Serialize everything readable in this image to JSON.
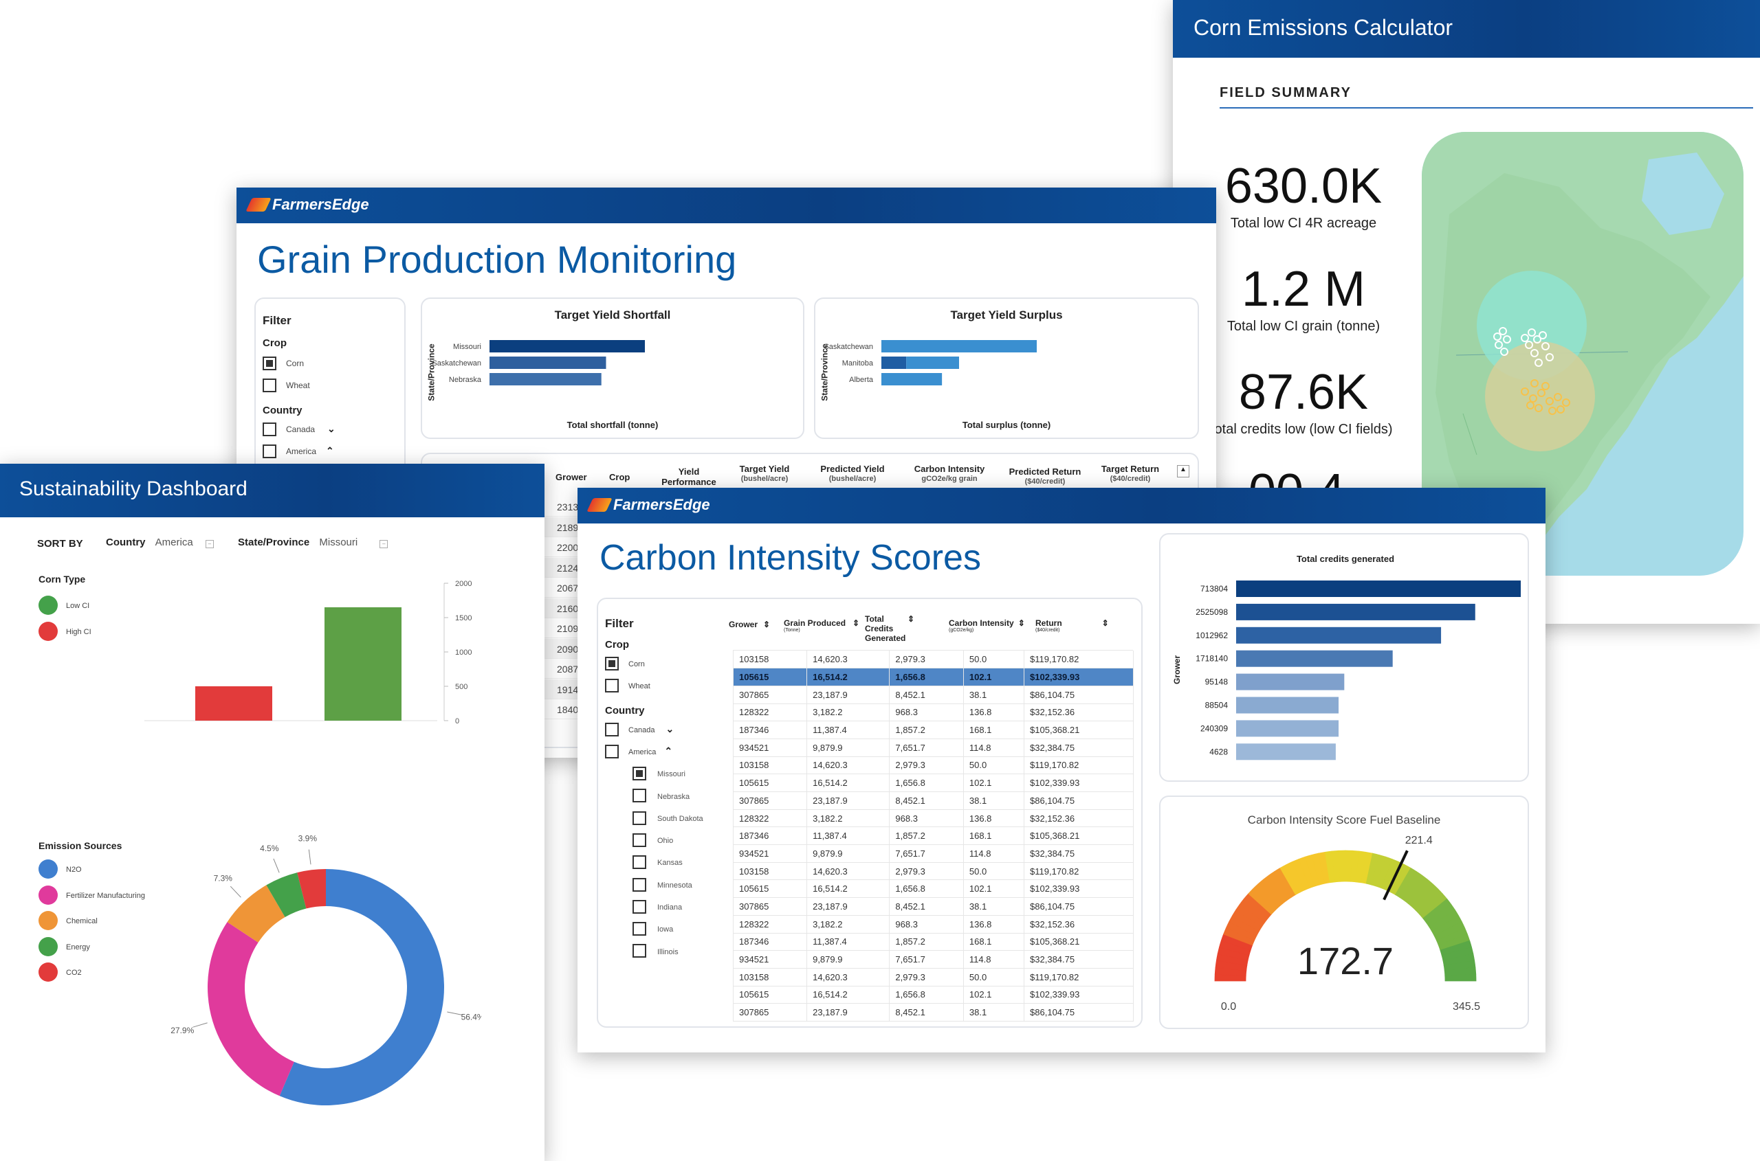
{
  "corn": {
    "title": "Corn Emissions Calculator",
    "section": "FIELD SUMMARY",
    "metrics": [
      {
        "value": "630.0K",
        "label": "Total low CI 4R acreage"
      },
      {
        "value": "1.2 M",
        "label": "Total low CI grain (tonne)"
      },
      {
        "value": "87.6K",
        "label": "otal credits low (low CI fields)"
      }
    ]
  },
  "grain": {
    "brand": "FarmersEdge",
    "title": "Grain Production Monitoring",
    "filter": {
      "title": "Filter",
      "crop_label": "Crop",
      "corn": "Corn",
      "wheat": "Wheat",
      "country_label": "Country",
      "canada": "Canada",
      "america": "America"
    },
    "shortfall": {
      "title": "Target Yield Shortfall",
      "ylabel": "State/Province",
      "xlabel": "Total shortfall (tonne)"
    },
    "surplus": {
      "title": "Target Yield Surplus",
      "ylabel": "State/Province",
      "xlabel": "Total surplus (tonne)"
    },
    "table": {
      "headers": [
        "Grower",
        "Crop",
        "Yield Performance",
        "Target Yield",
        "Predicted Yield",
        "Carbon Intensity",
        "Predicted Return",
        "Target Return"
      ],
      "subheaders": [
        "",
        "",
        "",
        "(bushel/acre)",
        "(bushel/acre)",
        "gCO2e/kg grain",
        "($40/credit)",
        "($40/credit)"
      ],
      "growers": [
        "2313",
        "2189",
        "2200",
        "2124",
        "2067",
        "2160",
        "2109",
        "2090",
        "2087",
        "1914",
        "1840"
      ]
    }
  },
  "sust": {
    "title": "Sustainability Dashboard",
    "sort_by": "SORT BY",
    "country_label": "Country",
    "country_value": "America",
    "state_label": "State/Province",
    "state_value": "Missouri",
    "corn_type_label": "Corn Type",
    "low_ci": "Low CI",
    "high_ci": "High CI",
    "emission_label": "Emission Sources",
    "emissions": [
      {
        "name": "N2O",
        "color": "#3f7fcf"
      },
      {
        "name": "Fertilizer Manufacturing",
        "color": "#e03a9c"
      },
      {
        "name": "Chemical",
        "color": "#ef9537"
      },
      {
        "name": "Energy",
        "color": "#44a14a"
      },
      {
        "name": "CO2",
        "color": "#e23b3b"
      }
    ]
  },
  "carbon": {
    "brand": "FarmersEdge",
    "title": "Carbon Intensity Scores",
    "filter": {
      "title": "Filter",
      "crop_label": "Crop",
      "corn": "Corn",
      "wheat": "Wheat",
      "country_label": "Country",
      "canada": "Canada",
      "america": "America",
      "states": [
        "Missouri",
        "Nebraska",
        "South Dakota",
        "Ohio",
        "Kansas",
        "Minnesota",
        "Indiana",
        "Iowa",
        "Illinois"
      ]
    },
    "table": {
      "headers": [
        "Grower",
        "Grain Produced",
        "Total Credits Generated",
        "Carbon Intensity",
        "Return"
      ],
      "subheaders": [
        "",
        "(Tonne)",
        "",
        "(gCO2e/kg)",
        "($40/credit)"
      ],
      "rows": [
        [
          "103158",
          "14,620.3",
          "2,979.3",
          "50.0",
          "$119,170.82"
        ],
        [
          "105615",
          "16,514.2",
          "1,656.8",
          "102.1",
          "$102,339.93"
        ],
        [
          "307865",
          "23,187.9",
          "8,452.1",
          "38.1",
          "$86,104.75"
        ],
        [
          "128322",
          "3,182.2",
          "968.3",
          "136.8",
          "$32,152.36"
        ],
        [
          "187346",
          "11,387.4",
          "1,857.2",
          "168.1",
          "$105,368.21"
        ],
        [
          "934521",
          "9,879.9",
          "7,651.7",
          "114.8",
          "$32,384.75"
        ],
        [
          "103158",
          "14,620.3",
          "2,979.3",
          "50.0",
          "$119,170.82"
        ],
        [
          "105615",
          "16,514.2",
          "1,656.8",
          "102.1",
          "$102,339.93"
        ],
        [
          "307865",
          "23,187.9",
          "8,452.1",
          "38.1",
          "$86,104.75"
        ],
        [
          "128322",
          "3,182.2",
          "968.3",
          "136.8",
          "$32,152.36"
        ],
        [
          "187346",
          "11,387.4",
          "1,857.2",
          "168.1",
          "$105,368.21"
        ],
        [
          "934521",
          "9,879.9",
          "7,651.7",
          "114.8",
          "$32,384.75"
        ],
        [
          "103158",
          "14,620.3",
          "2,979.3",
          "50.0",
          "$119,170.82"
        ],
        [
          "105615",
          "16,514.2",
          "1,656.8",
          "102.1",
          "$102,339.93"
        ],
        [
          "307865",
          "23,187.9",
          "8,452.1",
          "38.1",
          "$86,104.75"
        ],
        [
          "128322",
          "3,182.2",
          "968.3",
          "136.8",
          "$32,152.36"
        ],
        [
          "187346",
          "11,387.4",
          "1,857.2",
          "168.1",
          "$105,368.21"
        ],
        [
          "934521",
          "9,879.9",
          "7,651.7",
          "114.8",
          "$32,384.75"
        ],
        [
          "103158",
          "14,620.3",
          "2,979.3",
          "50.0",
          "$119,170.82"
        ],
        [
          "105615",
          "16,514.2",
          "1,656.8",
          "102.1",
          "$102,339.93"
        ],
        [
          "307865",
          "23,187.9",
          "8,452.1",
          "38.1",
          "$86,104.75"
        ]
      ]
    },
    "gauge": {
      "title": "Carbon Intensity Score Fuel Baseline",
      "value": 172.7,
      "value_text": "172.7",
      "min": 0,
      "min_text": "0.0",
      "max": 345.5,
      "max_text": "345.5",
      "baseline": 221.4,
      "baseline_text": "221.4"
    }
  },
  "chart_data": [
    {
      "type": "bar",
      "title": "Target Yield Shortfall",
      "xlabel": "Total shortfall (tonne)",
      "ylabel": "State/Province",
      "categories": [
        "Missouri",
        "Saskatchewan",
        "Nebraska"
      ],
      "values": [
        100,
        75,
        72
      ],
      "xlim": [
        0,
        100
      ],
      "colors": [
        "#0b3f7f",
        "#2e5f9e",
        "#3d6fab"
      ]
    },
    {
      "type": "bar",
      "title": "Target Yield Surplus",
      "xlabel": "Total surplus (tonne)",
      "ylabel": "State/Province",
      "categories": [
        "Saskatchewan",
        "Manitoba",
        "Alberta"
      ],
      "series": [
        {
          "values": [
            0,
            16,
            0
          ]
        },
        {
          "values": [
            100,
            34,
            39
          ]
        }
      ],
      "stacked": true,
      "xlim": [
        0,
        100
      ],
      "colors": [
        "#1f5da3",
        "#3a8fd0"
      ]
    },
    {
      "type": "bar",
      "categories": [
        "High CI",
        "Low CI"
      ],
      "values": [
        500,
        1650
      ],
      "ylim": [
        0,
        2000
      ],
      "yticks": [
        0,
        500,
        1000,
        1500,
        2000
      ],
      "colors": [
        "#e23b3b",
        "#5da046"
      ]
    },
    {
      "type": "pie",
      "title": "Emission Sources",
      "categories": [
        "N2O",
        "Fertilizer Manufacturing",
        "Chemical",
        "Energy",
        "CO2"
      ],
      "values": [
        56.4,
        27.9,
        7.3,
        4.5,
        3.9
      ],
      "labels": [
        "56.4%",
        "27.9%",
        "7.3%",
        "4.5%",
        "3.9%"
      ]
    },
    {
      "type": "bar",
      "title": "Total credits generated",
      "ylabel": "Grower",
      "categories": [
        "713804",
        "2525098",
        "1012962",
        "1718140",
        "95148",
        "88504",
        "240309",
        "4628"
      ],
      "values": [
        100,
        84,
        72,
        55,
        38,
        36,
        36,
        35
      ],
      "xlim": [
        0,
        100
      ],
      "colors": [
        "#0b3f7f",
        "#1c5193",
        "#2d62a4",
        "#4a79b3",
        "#7fa0cc",
        "#8aaad1",
        "#93b1d5",
        "#9cb8d9"
      ]
    }
  ]
}
